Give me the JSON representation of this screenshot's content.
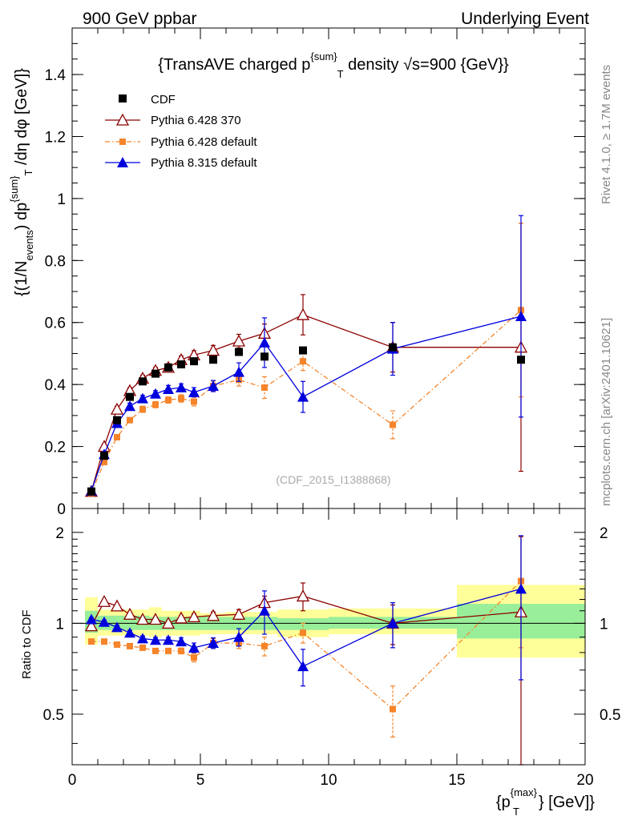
{
  "header": {
    "left": "900 GeV ppbar",
    "right": "Underlying Event"
  },
  "side_labels": {
    "rivet": "Rivet 4.1.0, ≥ 1.7M events",
    "mcplots": "mcplots.cern.ch [arXiv:2401.10621]"
  },
  "colors": {
    "cdf": "#000000",
    "p6_370": "#8b0000",
    "p6_default": "#f5842a",
    "p8": "#0000dd",
    "band_inner": "#99ee99",
    "band_outer": "#ffff99"
  },
  "chart_data": [
    {
      "type": "scatter",
      "title": "{TransAVE charged p^{sum}_T density √s=900 {GeV}}",
      "title_parts": {
        "pre": "{TransAVE charged p",
        "sup": "{sum}",
        "sub": "T",
        "post": " density √s=900 {GeV}}"
      },
      "ylabel": "{(1/N_events) dp^{sum}_T /dη  dφ [GeV]}",
      "ylabel_parts": {
        "a": "{(1/N",
        "a_sub": "events",
        "b": ") dp",
        "b_sup": "{sum}",
        "b_sub": "T",
        "c": " /dη  dφ [GeV]}"
      },
      "watermark": "(CDF_2015_I1388868)",
      "xlim": [
        0,
        20
      ],
      "ylim": [
        0,
        1.55
      ],
      "y_ticks": [
        0,
        0.2,
        0.4,
        0.6,
        0.8,
        1,
        1.2,
        1.4
      ],
      "y_tick_labels": [
        "0",
        "0.2",
        "0.4",
        "0.6",
        "0.8",
        "1",
        "1.2",
        "1.4"
      ],
      "legend_position": "top-left",
      "series": [
        {
          "name": "CDF",
          "key": "cdf",
          "x": [
            0.75,
            1.25,
            1.75,
            2.25,
            2.75,
            3.25,
            3.75,
            4.25,
            4.75,
            5.5,
            6.5,
            7.5,
            9,
            12.5,
            17.5
          ],
          "y": [
            0.055,
            0.17,
            0.285,
            0.36,
            0.41,
            0.435,
            0.455,
            0.465,
            0.475,
            0.48,
            0.505,
            0.49,
            0.51,
            0.52,
            0.48
          ],
          "err": [
            0.005,
            0.01,
            0.01,
            0.01,
            0.01,
            0.01,
            0.01,
            0.01,
            0.01,
            0.01,
            0.01,
            0.01,
            0.01,
            0.01,
            0.01
          ]
        },
        {
          "name": "Pythia 6.428 370",
          "key": "p6_370",
          "x": [
            0.75,
            1.25,
            1.75,
            2.25,
            2.75,
            3.25,
            3.75,
            4.25,
            4.75,
            5.5,
            6.5,
            7.5,
            9,
            12.5,
            17.5
          ],
          "y": [
            0.055,
            0.2,
            0.32,
            0.38,
            0.42,
            0.445,
            0.455,
            0.48,
            0.495,
            0.51,
            0.54,
            0.565,
            0.625,
            0.52,
            0.52
          ],
          "err": [
            0.005,
            0.008,
            0.01,
            0.01,
            0.01,
            0.01,
            0.012,
            0.012,
            0.014,
            0.016,
            0.022,
            0.03,
            0.065,
            0.08,
            0.4
          ]
        },
        {
          "name": "Pythia 6.428 default",
          "key": "p6_default",
          "x": [
            0.75,
            1.25,
            1.75,
            2.25,
            2.75,
            3.25,
            3.75,
            4.25,
            4.75,
            5.5,
            6.5,
            7.5,
            9,
            12.5,
            17.5
          ],
          "y": [
            0.05,
            0.15,
            0.23,
            0.285,
            0.32,
            0.335,
            0.35,
            0.355,
            0.345,
            0.395,
            0.415,
            0.39,
            0.475,
            0.27,
            0.64
          ],
          "err": [
            0.003,
            0.006,
            0.008,
            0.008,
            0.01,
            0.01,
            0.01,
            0.012,
            0.014,
            0.016,
            0.02,
            0.035,
            0.03,
            0.045,
            0.28
          ]
        },
        {
          "name": "Pythia 8.315 default",
          "key": "p8",
          "x": [
            0.75,
            1.25,
            1.75,
            2.25,
            2.75,
            3.25,
            3.75,
            4.25,
            4.75,
            5.5,
            6.5,
            7.5,
            9,
            12.5,
            17.5
          ],
          "y": [
            0.057,
            0.175,
            0.275,
            0.33,
            0.355,
            0.37,
            0.385,
            0.39,
            0.375,
            0.395,
            0.44,
            0.535,
            0.36,
            0.515,
            0.62
          ],
          "err": [
            0.004,
            0.006,
            0.008,
            0.01,
            0.01,
            0.01,
            0.012,
            0.012,
            0.015,
            0.018,
            0.03,
            0.08,
            0.05,
            0.085,
            0.325
          ]
        }
      ]
    },
    {
      "type": "scatter",
      "title": "",
      "xlabel": "{p_T^{max}} [GeV]}",
      "xlabel_parts": {
        "pre": "{p",
        "sup": "{max}",
        "sub": "T",
        "post": "} [GeV]}"
      },
      "ylabel": "Ratio to CDF",
      "yscale": "log",
      "xlim": [
        0,
        20
      ],
      "ylim": [
        0.34,
        2.4
      ],
      "x_ticks": [
        0,
        5,
        10,
        15,
        20
      ],
      "x_tick_labels": [
        "0",
        "5",
        "10",
        "15",
        "20"
      ],
      "y_ticks": [
        0.5,
        1,
        2
      ],
      "y_tick_labels": [
        "0.5",
        "1",
        "2"
      ],
      "bands": [
        {
          "x0": 0.5,
          "x1": 1.0,
          "inner": [
            0.93,
            1.1
          ],
          "outer": [
            0.85,
            1.22
          ]
        },
        {
          "x0": 1.0,
          "x1": 3.0,
          "inner": [
            0.95,
            1.06
          ],
          "outer": [
            0.91,
            1.11
          ]
        },
        {
          "x0": 3.0,
          "x1": 3.5,
          "inner": [
            0.95,
            1.05
          ],
          "outer": [
            0.9,
            1.13
          ]
        },
        {
          "x0": 3.5,
          "x1": 5.0,
          "inner": [
            0.95,
            1.05
          ],
          "outer": [
            0.91,
            1.1
          ]
        },
        {
          "x0": 5.0,
          "x1": 6.0,
          "inner": [
            0.95,
            1.05
          ],
          "outer": [
            0.92,
            1.08
          ]
        },
        {
          "x0": 6.0,
          "x1": 8.0,
          "inner": [
            0.95,
            1.05
          ],
          "outer": [
            0.92,
            1.09
          ]
        },
        {
          "x0": 8.0,
          "x1": 10.0,
          "inner": [
            0.95,
            1.04
          ],
          "outer": [
            0.9,
            1.11
          ]
        },
        {
          "x0": 10.0,
          "x1": 15.0,
          "inner": [
            0.96,
            1.05
          ],
          "outer": [
            0.92,
            1.12
          ]
        },
        {
          "x0": 15.0,
          "x1": 20.0,
          "inner": [
            0.89,
            1.16
          ],
          "outer": [
            0.77,
            1.34
          ]
        }
      ],
      "series": [
        {
          "name": "Pythia 6.428 370",
          "key": "p6_370",
          "x": [
            0.75,
            1.25,
            1.75,
            2.25,
            2.75,
            3.25,
            3.75,
            4.25,
            4.75,
            5.5,
            6.5,
            7.5,
            9,
            12.5,
            17.5
          ],
          "y": [
            0.98,
            1.18,
            1.14,
            1.07,
            1.03,
            1.03,
            1.0,
            1.04,
            1.05,
            1.06,
            1.07,
            1.17,
            1.23,
            1.0,
            1.09
          ],
          "err": [
            0.01,
            0.015,
            0.015,
            0.015,
            0.015,
            0.015,
            0.02,
            0.02,
            0.025,
            0.03,
            0.04,
            0.06,
            0.13,
            0.15,
            0.85
          ]
        },
        {
          "name": "Pythia 6.428 default",
          "key": "p6_default",
          "x": [
            0.75,
            1.25,
            1.75,
            2.25,
            2.75,
            3.25,
            3.75,
            4.25,
            4.75,
            5.5,
            6.5,
            7.5,
            9,
            12.5,
            17.5
          ],
          "y": [
            0.87,
            0.87,
            0.85,
            0.84,
            0.83,
            0.81,
            0.81,
            0.81,
            0.77,
            0.86,
            0.86,
            0.84,
            0.93,
            0.52,
            1.38
          ],
          "err": [
            0.01,
            0.012,
            0.012,
            0.012,
            0.012,
            0.012,
            0.015,
            0.018,
            0.025,
            0.03,
            0.035,
            0.06,
            0.07,
            0.1,
            0.55
          ]
        },
        {
          "name": "Pythia 8.315 default",
          "key": "p8",
          "x": [
            0.75,
            1.25,
            1.75,
            2.25,
            2.75,
            3.25,
            3.75,
            4.25,
            4.75,
            5.5,
            6.5,
            7.5,
            9,
            12.5,
            17.5
          ],
          "y": [
            1.03,
            1.01,
            0.97,
            0.93,
            0.89,
            0.88,
            0.88,
            0.87,
            0.83,
            0.86,
            0.9,
            1.1,
            0.72,
            1.0,
            1.3
          ],
          "err": [
            0.015,
            0.015,
            0.015,
            0.018,
            0.018,
            0.018,
            0.02,
            0.025,
            0.03,
            0.035,
            0.06,
            0.18,
            0.1,
            0.17,
            0.65
          ]
        }
      ]
    }
  ]
}
